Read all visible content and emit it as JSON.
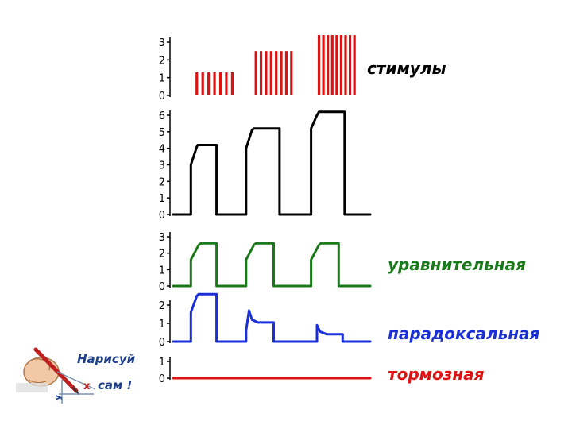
{
  "labels": {
    "stimuli": "стимулы",
    "equalizing": "уравнительная",
    "paradoxical": "парадоксальная",
    "inhibitory": "тормозная"
  },
  "colors": {
    "stimuli": "#dd1111",
    "response": "#000000",
    "equalizing": "#1a7a1a",
    "paradoxical": "#1a2fd6",
    "inhibitory": "#dd1111"
  },
  "badge": {
    "line1": "Нарисуй",
    "line2": "сам !",
    "icon": "hand-drawing-pencil-icon"
  },
  "chart_data": [
    {
      "type": "bar",
      "name": "stimuli-panel",
      "ylim": [
        0,
        3
      ],
      "yticks": [
        "0",
        "1",
        "2",
        "3"
      ],
      "groups": [
        {
          "x_start": 0.12,
          "x_end": 0.3,
          "bars": 7,
          "value": 1.3
        },
        {
          "x_start": 0.42,
          "x_end": 0.6,
          "bars": 8,
          "value": 2.5
        },
        {
          "x_start": 0.74,
          "x_end": 0.92,
          "bars": 9,
          "value": 3.4
        }
      ],
      "xlim": [
        0,
        1
      ]
    },
    {
      "type": "line",
      "name": "normal-response-panel",
      "ylim": [
        0,
        6
      ],
      "yticks": [
        "0",
        "1",
        "2",
        "3",
        "4",
        "5",
        "6"
      ],
      "xlim": [
        0,
        1
      ],
      "points": [
        [
          0,
          0
        ],
        [
          0.09,
          0
        ],
        [
          0.09,
          3.0
        ],
        [
          0.12,
          4.1
        ],
        [
          0.125,
          4.2
        ],
        [
          0.22,
          4.2
        ],
        [
          0.22,
          0
        ],
        [
          0.37,
          0
        ],
        [
          0.37,
          4.0
        ],
        [
          0.4,
          5.1
        ],
        [
          0.41,
          5.2
        ],
        [
          0.54,
          5.2
        ],
        [
          0.54,
          0
        ],
        [
          0.7,
          0
        ],
        [
          0.7,
          5.2
        ],
        [
          0.73,
          6.0
        ],
        [
          0.74,
          6.2
        ],
        [
          0.87,
          6.2
        ],
        [
          0.87,
          0
        ],
        [
          1.0,
          0
        ]
      ]
    },
    {
      "type": "line",
      "name": "equalizing-phase-panel",
      "ylim": [
        0,
        3
      ],
      "yticks": [
        "0",
        "1",
        "2",
        "3"
      ],
      "xlim": [
        0,
        1
      ],
      "points": [
        [
          0,
          0
        ],
        [
          0.09,
          0
        ],
        [
          0.09,
          1.6
        ],
        [
          0.13,
          2.5
        ],
        [
          0.14,
          2.6
        ],
        [
          0.22,
          2.6
        ],
        [
          0.22,
          0
        ],
        [
          0.37,
          0
        ],
        [
          0.37,
          1.6
        ],
        [
          0.41,
          2.5
        ],
        [
          0.42,
          2.6
        ],
        [
          0.51,
          2.6
        ],
        [
          0.51,
          0
        ],
        [
          0.7,
          0
        ],
        [
          0.7,
          1.6
        ],
        [
          0.74,
          2.5
        ],
        [
          0.75,
          2.6
        ],
        [
          0.84,
          2.6
        ],
        [
          0.84,
          0
        ],
        [
          1.0,
          0
        ]
      ]
    },
    {
      "type": "line",
      "name": "paradoxical-phase-panel",
      "ylim": [
        0,
        2
      ],
      "yticks": [
        "0",
        "1",
        "2"
      ],
      "xlim": [
        0,
        1
      ],
      "points": [
        [
          0,
          0
        ],
        [
          0.09,
          0
        ],
        [
          0.09,
          1.6
        ],
        [
          0.12,
          2.5
        ],
        [
          0.13,
          2.6
        ],
        [
          0.22,
          2.6
        ],
        [
          0.22,
          0
        ],
        [
          0.37,
          0
        ],
        [
          0.37,
          0.6
        ],
        [
          0.385,
          1.7
        ],
        [
          0.4,
          1.2
        ],
        [
          0.43,
          1.05
        ],
        [
          0.51,
          1.05
        ],
        [
          0.51,
          0
        ],
        [
          0.73,
          0
        ],
        [
          0.73,
          0.9
        ],
        [
          0.745,
          0.55
        ],
        [
          0.78,
          0.4
        ],
        [
          0.86,
          0.4
        ],
        [
          0.86,
          0
        ],
        [
          1.0,
          0
        ]
      ]
    },
    {
      "type": "line",
      "name": "inhibitory-phase-panel",
      "ylim": [
        0,
        1
      ],
      "yticks": [
        "0",
        "1"
      ],
      "xlim": [
        0,
        1
      ],
      "points": [
        [
          0,
          0
        ],
        [
          1.0,
          0
        ]
      ]
    }
  ]
}
